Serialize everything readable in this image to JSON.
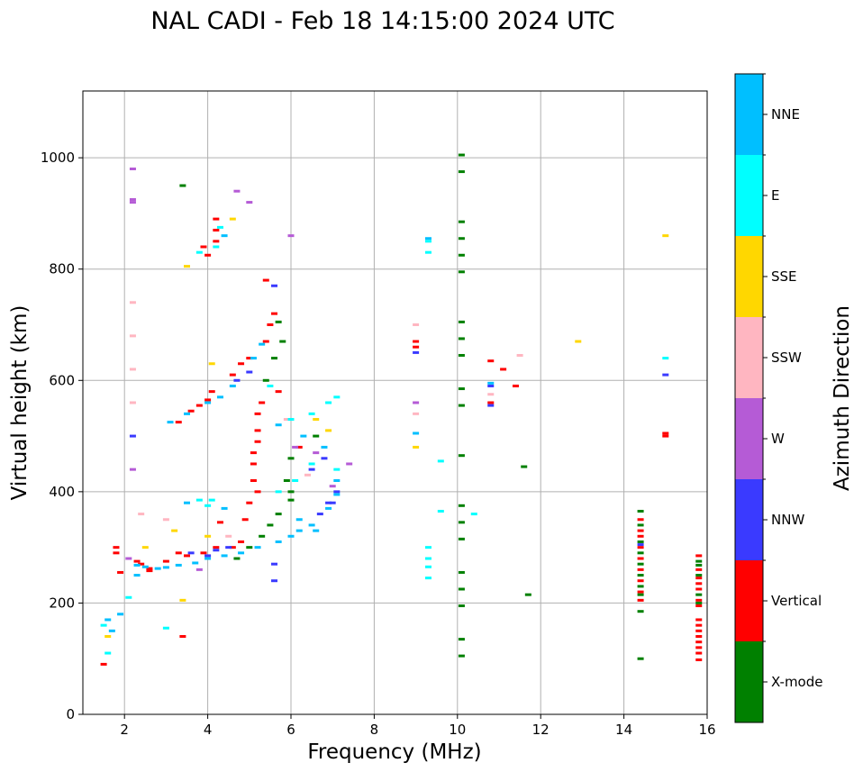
{
  "chart_data": {
    "type": "scatter",
    "title": "NAL CADI - Feb 18 14:15:00 2024 UTC",
    "xlabel": "Frequency (MHz)",
    "ylabel": "Virtual height (km)",
    "xlim": [
      1,
      16
    ],
    "ylim": [
      0,
      1120
    ],
    "xticks": [
      2,
      4,
      6,
      8,
      10,
      12,
      14,
      16
    ],
    "yticks": [
      0,
      200,
      400,
      600,
      800,
      1000
    ],
    "grid": true,
    "colorbar": {
      "label": "Azimuth Direction",
      "categories": [
        "X-mode",
        "Vertical",
        "NNW",
        "W",
        "SSW",
        "SSE",
        "E",
        "NNE"
      ],
      "colors": [
        "#008000",
        "#ff0000",
        "#3a3aff",
        "#b55bd6",
        "#ffb6c1",
        "#ffd700",
        "#00ffff",
        "#00bfff"
      ]
    },
    "series": [
      {
        "name": "Vertical",
        "points": [
          [
            1.8,
            300
          ],
          [
            1.8,
            290
          ],
          [
            2.4,
            270
          ],
          [
            2.6,
            262
          ],
          [
            3.0,
            275
          ],
          [
            3.3,
            290
          ],
          [
            3.5,
            285
          ],
          [
            3.9,
            290
          ],
          [
            4.2,
            300
          ],
          [
            4.6,
            300
          ],
          [
            4.8,
            310
          ],
          [
            4.9,
            350
          ],
          [
            5.0,
            380
          ],
          [
            5.1,
            420
          ],
          [
            5.1,
            470
          ],
          [
            5.2,
            490
          ],
          [
            5.2,
            510
          ],
          [
            5.2,
            540
          ],
          [
            5.3,
            560
          ],
          [
            5.2,
            400
          ],
          [
            5.1,
            450
          ],
          [
            3.3,
            525
          ],
          [
            3.6,
            545
          ],
          [
            3.8,
            555
          ],
          [
            4.0,
            565
          ],
          [
            4.1,
            580
          ],
          [
            4.6,
            610
          ],
          [
            4.8,
            630
          ],
          [
            5.0,
            640
          ],
          [
            5.4,
            670
          ],
          [
            5.5,
            700
          ],
          [
            5.6,
            720
          ],
          [
            5.4,
            780
          ],
          [
            3.9,
            840
          ],
          [
            4.0,
            825
          ],
          [
            4.2,
            850
          ],
          [
            4.2,
            870
          ],
          [
            4.2,
            890
          ],
          [
            1.5,
            90
          ],
          [
            3.4,
            140
          ],
          [
            1.9,
            255
          ],
          [
            2.3,
            275
          ],
          [
            2.6,
            258
          ],
          [
            4.3,
            345
          ],
          [
            5.7,
            580
          ],
          [
            6.2,
            480
          ],
          [
            9.0,
            670
          ],
          [
            9.0,
            660
          ],
          [
            10.8,
            635
          ],
          [
            10.8,
            560
          ],
          [
            11.1,
            620
          ],
          [
            11.4,
            590
          ],
          [
            15.0,
            500
          ],
          [
            15.0,
            505
          ],
          [
            14.4,
            350
          ],
          [
            14.4,
            330
          ],
          [
            14.4,
            320
          ],
          [
            14.4,
            300
          ],
          [
            14.4,
            280
          ],
          [
            14.4,
            260
          ],
          [
            14.4,
            240
          ],
          [
            14.4,
            220
          ],
          [
            14.4,
            205
          ],
          [
            15.8,
            285
          ],
          [
            15.8,
            260
          ],
          [
            15.8,
            245
          ],
          [
            15.8,
            235
          ],
          [
            15.8,
            225
          ],
          [
            15.8,
            205
          ],
          [
            15.8,
            195
          ],
          [
            15.8,
            170
          ],
          [
            15.8,
            160
          ],
          [
            15.8,
            150
          ],
          [
            15.8,
            140
          ],
          [
            15.8,
            130
          ],
          [
            15.8,
            120
          ],
          [
            15.8,
            110
          ],
          [
            15.8,
            98
          ]
        ]
      },
      {
        "name": "X-mode",
        "points": [
          [
            3.4,
            950
          ],
          [
            10.1,
            1005
          ],
          [
            10.1,
            975
          ],
          [
            10.1,
            885
          ],
          [
            10.1,
            855
          ],
          [
            10.1,
            825
          ],
          [
            10.1,
            795
          ],
          [
            10.1,
            705
          ],
          [
            10.1,
            675
          ],
          [
            10.1,
            645
          ],
          [
            10.1,
            585
          ],
          [
            10.1,
            555
          ],
          [
            10.1,
            465
          ],
          [
            10.1,
            375
          ],
          [
            10.1,
            345
          ],
          [
            10.1,
            315
          ],
          [
            10.1,
            255
          ],
          [
            10.1,
            225
          ],
          [
            10.1,
            195
          ],
          [
            10.1,
            135
          ],
          [
            10.1,
            105
          ],
          [
            11.6,
            445
          ],
          [
            11.7,
            215
          ],
          [
            14.4,
            185
          ],
          [
            14.4,
            100
          ],
          [
            5.3,
            320
          ],
          [
            5.5,
            340
          ],
          [
            5.7,
            360
          ],
          [
            6.0,
            385
          ],
          [
            6.0,
            400
          ],
          [
            5.9,
            420
          ],
          [
            5.4,
            600
          ],
          [
            5.6,
            640
          ],
          [
            5.8,
            670
          ],
          [
            5.7,
            705
          ],
          [
            6.6,
            500
          ],
          [
            6.0,
            460
          ],
          [
            4.7,
            280
          ],
          [
            5.0,
            300
          ],
          [
            14.4,
            365
          ],
          [
            14.4,
            340
          ],
          [
            14.4,
            310
          ],
          [
            14.4,
            290
          ],
          [
            14.4,
            270
          ],
          [
            14.4,
            250
          ],
          [
            14.4,
            230
          ],
          [
            14.4,
            215
          ],
          [
            15.8,
            275
          ],
          [
            15.8,
            268
          ],
          [
            15.8,
            250
          ],
          [
            15.8,
            215
          ],
          [
            15.8,
            200
          ]
        ]
      },
      {
        "name": "NNW",
        "points": [
          [
            5.6,
            770
          ],
          [
            4.7,
            600
          ],
          [
            5.0,
            615
          ],
          [
            3.6,
            290
          ],
          [
            4.2,
            295
          ],
          [
            5.6,
            270
          ],
          [
            5.6,
            240
          ],
          [
            6.7,
            360
          ],
          [
            6.9,
            380
          ],
          [
            7.1,
            400
          ],
          [
            7.0,
            380
          ],
          [
            6.5,
            440
          ],
          [
            6.8,
            460
          ],
          [
            9.0,
            650
          ],
          [
            10.8,
            555
          ],
          [
            10.8,
            590
          ],
          [
            15.0,
            610
          ],
          [
            14.4,
            305
          ],
          [
            2.2,
            500
          ],
          [
            4.0,
            285
          ],
          [
            4.5,
            300
          ]
        ]
      },
      {
        "name": "W",
        "points": [
          [
            2.2,
            980
          ],
          [
            2.2,
            925
          ],
          [
            2.2,
            920
          ],
          [
            4.7,
            940
          ],
          [
            5.0,
            920
          ],
          [
            6.0,
            860
          ],
          [
            9.0,
            560
          ],
          [
            2.2,
            440
          ],
          [
            3.8,
            260
          ],
          [
            6.1,
            480
          ],
          [
            6.6,
            470
          ],
          [
            7.0,
            410
          ],
          [
            7.4,
            450
          ],
          [
            2.1,
            280
          ]
        ]
      },
      {
        "name": "SSW",
        "points": [
          [
            2.2,
            740
          ],
          [
            2.2,
            680
          ],
          [
            2.2,
            620
          ],
          [
            2.2,
            560
          ],
          [
            9.0,
            700
          ],
          [
            9.0,
            540
          ],
          [
            10.8,
            575
          ],
          [
            11.5,
            645
          ],
          [
            2.4,
            360
          ],
          [
            3.0,
            350
          ],
          [
            4.5,
            320
          ],
          [
            5.9,
            530
          ],
          [
            6.4,
            430
          ]
        ]
      },
      {
        "name": "SSE",
        "points": [
          [
            3.5,
            805
          ],
          [
            4.6,
            890
          ],
          [
            4.1,
            630
          ],
          [
            9.0,
            480
          ],
          [
            12.9,
            670
          ],
          [
            15.0,
            860
          ],
          [
            3.4,
            205
          ],
          [
            1.6,
            140
          ],
          [
            2.5,
            300
          ],
          [
            3.2,
            330
          ],
          [
            4.0,
            320
          ],
          [
            6.6,
            530
          ],
          [
            6.9,
            510
          ]
        ]
      },
      {
        "name": "E",
        "points": [
          [
            4.3,
            875
          ],
          [
            3.8,
            830
          ],
          [
            4.2,
            840
          ],
          [
            4.1,
            385
          ],
          [
            3.8,
            385
          ],
          [
            4.0,
            375
          ],
          [
            5.5,
            590
          ],
          [
            6.0,
            530
          ],
          [
            6.5,
            540
          ],
          [
            6.9,
            560
          ],
          [
            7.1,
            570
          ],
          [
            9.3,
            850
          ],
          [
            9.3,
            830
          ],
          [
            9.3,
            300
          ],
          [
            9.3,
            280
          ],
          [
            9.3,
            265
          ],
          [
            9.3,
            245
          ],
          [
            9.6,
            365
          ],
          [
            9.6,
            455
          ],
          [
            10.4,
            360
          ],
          [
            15.0,
            640
          ],
          [
            1.6,
            110
          ],
          [
            1.5,
            160
          ],
          [
            2.1,
            210
          ],
          [
            3.0,
            155
          ],
          [
            5.7,
            400
          ],
          [
            6.1,
            420
          ],
          [
            6.5,
            450
          ],
          [
            7.1,
            440
          ]
        ]
      },
      {
        "name": "NNE",
        "points": [
          [
            4.4,
            860
          ],
          [
            3.1,
            525
          ],
          [
            3.5,
            540
          ],
          [
            4.0,
            560
          ],
          [
            4.3,
            570
          ],
          [
            4.6,
            590
          ],
          [
            5.1,
            640
          ],
          [
            5.3,
            665
          ],
          [
            5.7,
            520
          ],
          [
            6.3,
            500
          ],
          [
            6.8,
            480
          ],
          [
            7.1,
            420
          ],
          [
            7.1,
            395
          ],
          [
            6.9,
            370
          ],
          [
            6.5,
            340
          ],
          [
            6.2,
            330
          ],
          [
            6.0,
            320
          ],
          [
            5.7,
            310
          ],
          [
            5.2,
            300
          ],
          [
            4.8,
            290
          ],
          [
            4.4,
            285
          ],
          [
            4.0,
            280
          ],
          [
            3.7,
            272
          ],
          [
            3.3,
            268
          ],
          [
            3.0,
            264
          ],
          [
            2.8,
            262
          ],
          [
            2.5,
            265
          ],
          [
            2.3,
            268
          ],
          [
            9.0,
            505
          ],
          [
            9.3,
            855
          ],
          [
            10.8,
            595
          ],
          [
            1.6,
            170
          ],
          [
            1.7,
            150
          ],
          [
            1.9,
            180
          ],
          [
            2.3,
            250
          ],
          [
            3.5,
            380
          ],
          [
            4.4,
            370
          ],
          [
            6.2,
            350
          ],
          [
            6.6,
            330
          ]
        ]
      }
    ]
  }
}
